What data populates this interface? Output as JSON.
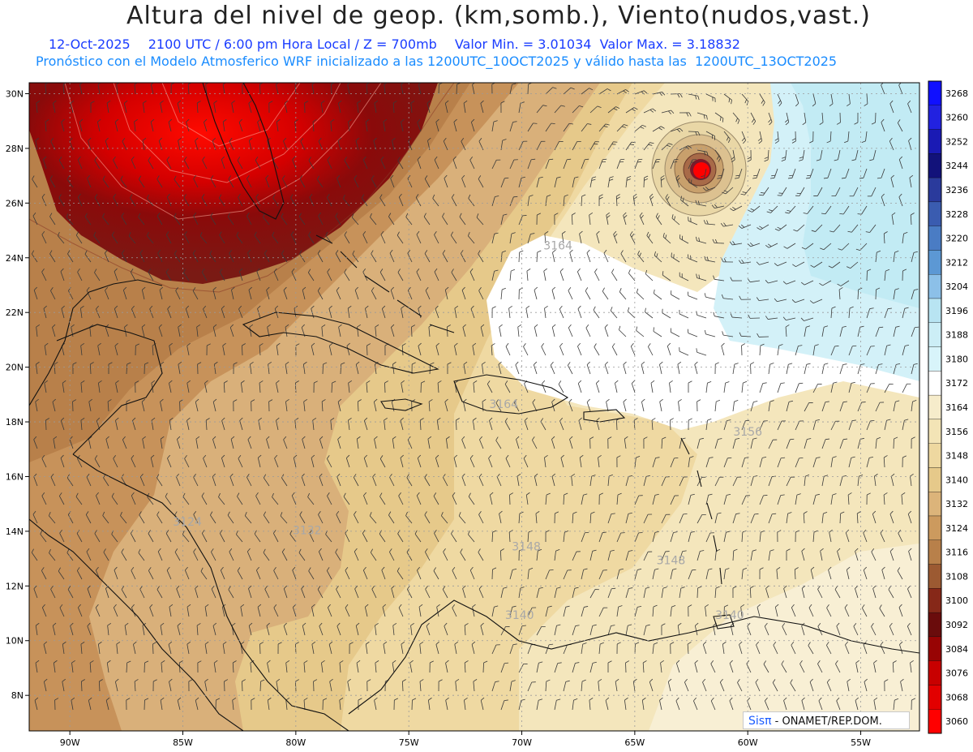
{
  "header": {
    "title": "Altura del nivel de geop. (km,somb.), Viento(nudos,vast.)",
    "date": "12-Oct-2025",
    "time": "2100 UTC / 6:00 pm Hora Local / Z = 700mb",
    "min_label": "Valor Min. = 3.01034",
    "max_label": "Valor Max. = 3.18832",
    "forecast": "Pronóstico con el Modelo Atmosferico WRF inicializado a las 1200UTC_10OCT2025 y válido hasta las  1200UTC_13OCT2025"
  },
  "axes": {
    "lon_labels": [
      "90W",
      "85W",
      "80W",
      "75W",
      "70W",
      "65W",
      "60W",
      "55W"
    ],
    "lon_values": [
      -90,
      -85,
      -80,
      -75,
      -70,
      -65,
      -60,
      -55
    ],
    "lat_labels": [
      "30N",
      "28N",
      "26N",
      "24N",
      "22N",
      "20N",
      "18N",
      "16N",
      "14N",
      "12N",
      "10N",
      "8N"
    ],
    "lat_values": [
      30,
      28,
      26,
      24,
      22,
      20,
      18,
      16,
      14,
      12,
      10,
      8
    ],
    "lon_range": [
      -91.8,
      -52.4
    ],
    "lat_range": [
      6.7,
      30.4
    ]
  },
  "colorbar": {
    "levels": [
      "3268",
      "3260",
      "3252",
      "3244",
      "3236",
      "3228",
      "3220",
      "3212",
      "3204",
      "3196",
      "3188",
      "3180",
      "3172",
      "3164",
      "3156",
      "3148",
      "3140",
      "3132",
      "3124",
      "3116",
      "3108",
      "3100",
      "3092",
      "3084",
      "3076",
      "3068",
      "3060"
    ],
    "colors": [
      "#1010ff",
      "#2222e0",
      "#1a1ab4",
      "#12127a",
      "#2a3a9c",
      "#3a5cb0",
      "#4a7cc4",
      "#5c98d4",
      "#8cc0e8",
      "#b8e4f2",
      "#cceef6",
      "#d8f4fa",
      "#ffffff",
      "#f6eccb",
      "#f3e4b6",
      "#eed8a0",
      "#e6c98a",
      "#dcb47a",
      "#cc9a5e",
      "#b8804a",
      "#9c5a32",
      "#862818",
      "#6a0c0c",
      "#980404",
      "#c80000",
      "#e20000",
      "#ff0000"
    ]
  },
  "contour_labels": [
    {
      "text": "3164",
      "lon": -68.4,
      "lat": 24.3
    },
    {
      "text": "3164",
      "lon": -70.8,
      "lat": 18.5
    },
    {
      "text": "3156",
      "lon": -60.0,
      "lat": 17.5
    },
    {
      "text": "3148",
      "lon": -69.8,
      "lat": 13.3
    },
    {
      "text": "3148",
      "lon": -63.4,
      "lat": 12.8
    },
    {
      "text": "3140",
      "lon": -70.1,
      "lat": 10.8
    },
    {
      "text": "3140",
      "lon": -60.8,
      "lat": 10.8
    },
    {
      "text": "3132",
      "lon": -79.5,
      "lat": 13.9
    },
    {
      "text": "3124",
      "lon": -84.8,
      "lat": 14.2
    }
  ],
  "credit": {
    "logo": "Sisπ",
    "text": " - ONAMET/REP.DOM."
  }
}
